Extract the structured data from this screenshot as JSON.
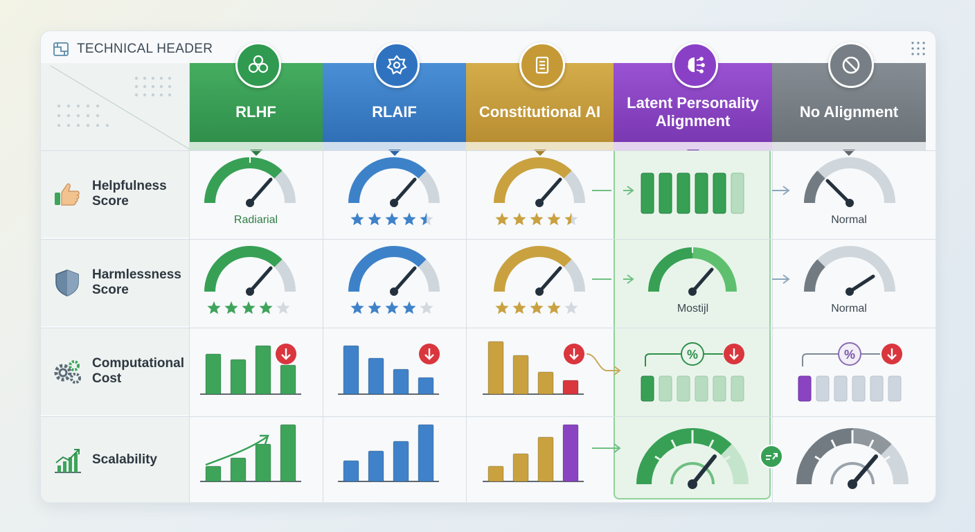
{
  "header": {
    "title": "TECHNICAL HEADER"
  },
  "columns": [
    {
      "label": "RLHF",
      "color": "#3ea45a",
      "icon": "openai-knot-icon"
    },
    {
      "label": "RLAIF",
      "color": "#3f82c9",
      "icon": "gear-network-icon"
    },
    {
      "label": "Constitutional AI",
      "color": "#c9a13f",
      "icon": "scroll-icon"
    },
    {
      "label": "Latent Personality Alignment",
      "color": "#8a44c2",
      "icon": "brain-network-icon"
    },
    {
      "label": "No Alignment",
      "color": "#7b8289",
      "icon": "prohibited-icon"
    }
  ],
  "rows": [
    {
      "label": "Helpfulness Score",
      "icon": "thumbs-up-icon"
    },
    {
      "label": "Harmlessness Score",
      "icon": "shield-icon"
    },
    {
      "label": "Computational Cost",
      "icon": "gears-icon"
    },
    {
      "label": "Scalability",
      "icon": "growth-chart-icon"
    }
  ],
  "cells": {
    "help_rlhf": "Radiarial",
    "help_none": "Normal",
    "harm_lpa": "Mostijl",
    "harm_none": "Normal"
  },
  "ratings": {
    "help_rlaif": 4.5,
    "help_cai": 4.5,
    "harm_rlhf": 4,
    "harm_rlaif": 4,
    "harm_cai": 4
  },
  "chart_data": [
    {
      "type": "bar",
      "series": [
        {
          "values": [
            58,
            50,
            70,
            42
          ]
        }
      ],
      "ylim": [
        0,
        80
      ]
    },
    {
      "type": "bar",
      "series": [
        {
          "values": [
            70,
            52,
            36,
            24
          ]
        }
      ],
      "ylim": [
        0,
        80
      ]
    },
    {
      "type": "bar",
      "series": [
        {
          "values": [
            76,
            56,
            32,
            20
          ]
        }
      ],
      "ylim": [
        0,
        80
      ]
    },
    {
      "type": "bar",
      "series": [
        {
          "values": [
            22,
            34,
            54,
            82
          ]
        }
      ],
      "ylim": [
        0,
        90
      ]
    },
    {
      "type": "bar",
      "series": [
        {
          "values": [
            30,
            44,
            58,
            82
          ]
        }
      ],
      "ylim": [
        0,
        90
      ]
    },
    {
      "type": "bar",
      "series": [
        {
          "values": [
            22,
            40,
            64,
            82
          ]
        }
      ],
      "ylim": [
        0,
        90
      ]
    }
  ],
  "colors": {
    "green": "#3ea45a",
    "blue": "#3f82c9",
    "gold": "#c9a13f",
    "purple": "#8a44c2",
    "gray": "#7b8289",
    "red": "#d9363e"
  }
}
